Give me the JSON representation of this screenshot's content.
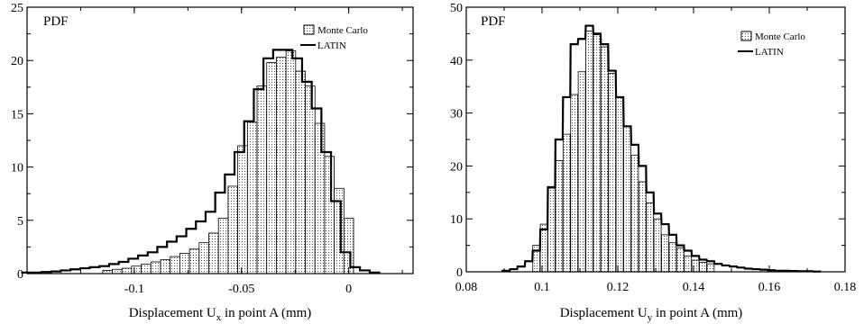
{
  "chart_data": [
    {
      "type": "bar",
      "annotation": "PDF",
      "xlabel_prefix": "Displacement U",
      "xlabel_sub": "x",
      "xlabel_suffix": " in point A (mm)",
      "xlim": [
        -0.15,
        0.03
      ],
      "ylim": [
        0,
        25
      ],
      "xticks": [
        -0.1,
        -0.05,
        0
      ],
      "xtick_labels": [
        "-0.1",
        "-0.05",
        "0"
      ],
      "yticks": [
        0,
        5,
        10,
        15,
        20,
        25
      ],
      "ytick_labels": [
        "0",
        "5",
        "10",
        "15",
        "20",
        "25"
      ],
      "bin_width": 0.0045,
      "legend": {
        "placement": "top-right",
        "entries": [
          "Monte Carlo",
          "LATIN"
        ]
      },
      "series": [
        {
          "name": "Monte Carlo",
          "style": "dotted bars",
          "x": [
            -0.1125,
            -0.108,
            -0.1035,
            -0.099,
            -0.0945,
            -0.09,
            -0.0855,
            -0.081,
            -0.0765,
            -0.072,
            -0.0675,
            -0.063,
            -0.0585,
            -0.054,
            -0.0495,
            -0.045,
            -0.0405,
            -0.036,
            -0.0315,
            -0.027,
            -0.0225,
            -0.018,
            -0.0135,
            -0.009,
            -0.0045,
            0
          ],
          "values": [
            0.3,
            0.4,
            0.5,
            0.7,
            0.9,
            1.1,
            1.3,
            1.6,
            1.9,
            2.3,
            2.9,
            3.8,
            5.2,
            8.2,
            12.0,
            14.2,
            17.6,
            19.8,
            20.3,
            20.9,
            19.0,
            17.6,
            14.1,
            11.0,
            8.0,
            5.2
          ]
        },
        {
          "name": "LATIN",
          "style": "step line",
          "x": [
            -0.15,
            -0.1455,
            -0.141,
            -0.1365,
            -0.132,
            -0.1275,
            -0.123,
            -0.1185,
            -0.114,
            -0.1095,
            -0.105,
            -0.1005,
            -0.096,
            -0.0915,
            -0.087,
            -0.0825,
            -0.078,
            -0.0735,
            -0.069,
            -0.0645,
            -0.06,
            -0.0555,
            -0.051,
            -0.0465,
            -0.042,
            -0.0375,
            -0.033,
            -0.0285,
            -0.024,
            -0.0195,
            -0.015,
            -0.0105,
            -0.006,
            -0.0015,
            0.003,
            0.0075,
            0.012
          ],
          "values": [
            0.1,
            0.1,
            0.15,
            0.2,
            0.3,
            0.4,
            0.5,
            0.6,
            0.7,
            0.9,
            1.1,
            1.4,
            1.7,
            2.0,
            2.5,
            3.0,
            3.5,
            4.2,
            4.9,
            5.8,
            7.6,
            9.3,
            11.4,
            14.3,
            17.3,
            20.2,
            21.0,
            21.0,
            20.2,
            18.0,
            15.5,
            11.4,
            6.8,
            2.0,
            0.6,
            0.3,
            0.1
          ]
        }
      ]
    },
    {
      "type": "bar",
      "annotation": "PDF",
      "xlabel_prefix": "Displacement U",
      "xlabel_sub": "y",
      "xlabel_suffix": " in point A (mm)",
      "xlim": [
        0.08,
        0.18
      ],
      "ylim": [
        0,
        50
      ],
      "xticks": [
        0.08,
        0.1,
        0.12,
        0.14,
        0.16,
        0.18
      ],
      "xtick_labels": [
        "0.08",
        "0.1",
        "0.12",
        "0.14",
        "0.16",
        "0.18"
      ],
      "yticks": [
        0,
        10,
        20,
        30,
        40,
        50
      ],
      "ytick_labels": [
        "0",
        "10",
        "20",
        "30",
        "40",
        "50"
      ],
      "bin_width": 0.0019,
      "legend": {
        "placement": "top-right",
        "entries": [
          "Monte Carlo",
          "LATIN"
        ]
      },
      "series": [
        {
          "name": "Monte Carlo",
          "style": "dotted bars",
          "x": [
            0.0985,
            0.1005,
            0.1025,
            0.1045,
            0.1065,
            0.1085,
            0.1105,
            0.1125,
            0.1145,
            0.1165,
            0.1185,
            0.1205,
            0.1225,
            0.1245,
            0.1265,
            0.1285,
            0.1305,
            0.1325,
            0.1345,
            0.1365,
            0.1385,
            0.1405,
            0.1425,
            0.1445
          ],
          "values": [
            5.0,
            9.0,
            15.8,
            21.0,
            26.0,
            33.5,
            37.8,
            45.5,
            44.8,
            42.5,
            37.5,
            33.0,
            27.5,
            22.0,
            17.0,
            13.0,
            10.0,
            7.0,
            5.5,
            4.5,
            3.0,
            2.2,
            1.8,
            1.5
          ]
        },
        {
          "name": "LATIN",
          "style": "step line",
          "x": [
            0.0905,
            0.0925,
            0.0945,
            0.0965,
            0.0985,
            0.1005,
            0.1025,
            0.1045,
            0.1065,
            0.1085,
            0.1105,
            0.1125,
            0.1145,
            0.1165,
            0.1185,
            0.1205,
            0.1225,
            0.1245,
            0.1265,
            0.1285,
            0.1305,
            0.1325,
            0.1345,
            0.1365,
            0.1385,
            0.1405,
            0.1425,
            0.1445,
            0.1465,
            0.1485,
            0.1505,
            0.1525,
            0.1545,
            0.1565,
            0.1585,
            0.1605,
            0.1625,
            0.1645,
            0.1665,
            0.1685,
            0.1705,
            0.1725
          ],
          "values": [
            0.2,
            0.5,
            1.0,
            2.0,
            4.0,
            8.0,
            16.0,
            25.0,
            33.0,
            43.0,
            44.0,
            46.5,
            45.0,
            43.0,
            38.0,
            33.0,
            27.5,
            24.0,
            20.0,
            15.0,
            11.0,
            9.0,
            7.0,
            5.0,
            4.0,
            3.0,
            2.3,
            2.0,
            1.5,
            1.2,
            1.0,
            0.8,
            0.6,
            0.5,
            0.4,
            0.3,
            0.2,
            0.2,
            0.15,
            0.1,
            0.1,
            0.05
          ]
        }
      ]
    }
  ]
}
